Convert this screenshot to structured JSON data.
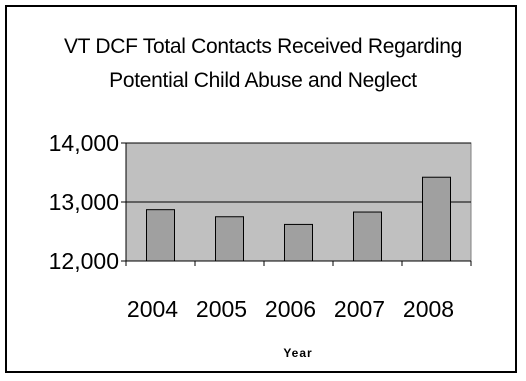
{
  "chart_data": {
    "type": "bar",
    "title_lines": [
      "VT DCF Total Contacts Received Regarding",
      "Potential Child Abuse and Neglect"
    ],
    "categories": [
      "2004",
      "2005",
      "2006",
      "2007",
      "2008"
    ],
    "values": [
      12870,
      12750,
      12620,
      12830,
      13420
    ],
    "xlabel": "Year",
    "ylabel": "",
    "ylim": [
      12000,
      14000
    ],
    "yticks": [
      12000,
      13000,
      14000
    ],
    "ytick_labels": [
      "12,000",
      "13,000",
      "14,000"
    ],
    "grid": true,
    "legend": "none",
    "colors": {
      "plot_background": "#c0c0c0",
      "bar_fill": "#a0a0a0",
      "bar_stroke": "#000000",
      "frame": "#000000"
    }
  }
}
